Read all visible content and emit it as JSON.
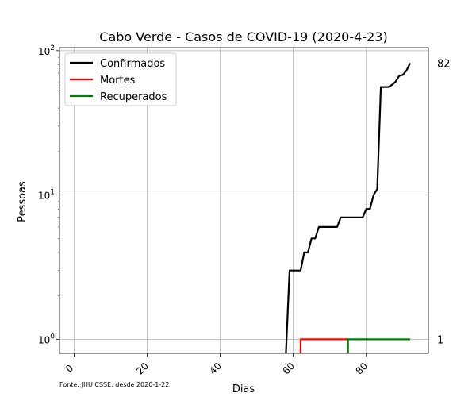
{
  "chart_data": {
    "type": "line",
    "title": "Cabo Verde - Casos de COVID-19 (2020-4-23)",
    "xlabel": "Dias",
    "ylabel": "Pessoas",
    "source": "Fonte: JHU CSSE, desde 2020-1-22",
    "yscale": "log",
    "xlim": [
      -4,
      97
    ],
    "ylim": [
      0.8,
      105
    ],
    "grid": true,
    "legend_position": "top-left",
    "x_ticks": [
      0,
      20,
      40,
      60,
      80
    ],
    "x_tick_labels": [
      "0",
      "20",
      "40",
      "60",
      "80"
    ],
    "y_ticks": [
      1,
      10,
      100
    ],
    "y_tick_labels": [
      "10",
      "10",
      "10"
    ],
    "y_tick_exponents": [
      "0",
      "1",
      "2"
    ],
    "end_labels": [
      {
        "value": 82,
        "text": "82"
      },
      {
        "value": 1,
        "text": "1"
      }
    ],
    "series": [
      {
        "name": "Confirmados",
        "color": "#000000",
        "x": [
          58,
          59,
          60,
          61,
          62,
          63,
          64,
          65,
          66,
          67,
          68,
          69,
          70,
          71,
          72,
          73,
          74,
          75,
          76,
          77,
          78,
          79,
          80,
          81,
          82,
          83,
          84,
          85,
          86,
          87,
          88,
          89,
          90,
          91,
          92
        ],
        "y": [
          0.8,
          3,
          3,
          3,
          3,
          4,
          4,
          5,
          5,
          6,
          6,
          6,
          6,
          6,
          6,
          7,
          7,
          7,
          7,
          7,
          7,
          7,
          8,
          8,
          10,
          11,
          56,
          56,
          56,
          58,
          61,
          67,
          68,
          73,
          82
        ]
      },
      {
        "name": "Mortes",
        "color": "#ff0000",
        "x": [
          62,
          62,
          75
        ],
        "y": [
          0.8,
          1,
          1
        ]
      },
      {
        "name": "Recuperados",
        "color": "#008000",
        "x": [
          75,
          75,
          92
        ],
        "y": [
          0.8,
          1,
          1
        ]
      }
    ]
  }
}
